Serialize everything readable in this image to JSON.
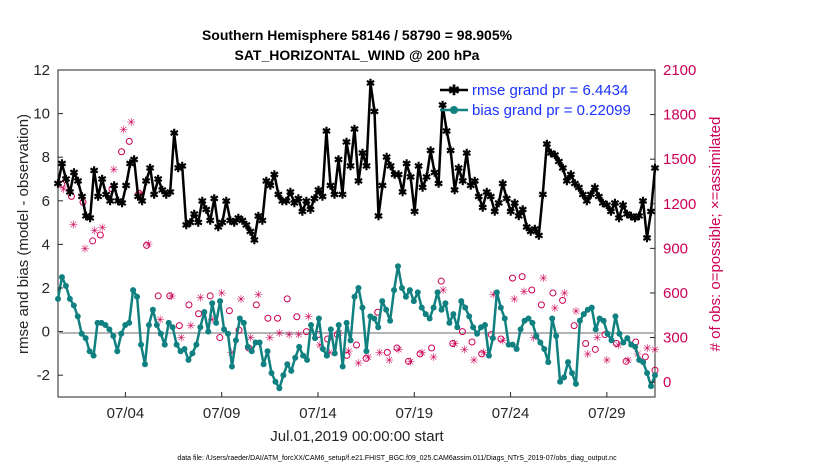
{
  "header": {
    "title_line1": "Southern Hemisphere 58146 / 58790 = 98.905%",
    "title_line2": "SAT_HORIZONTAL_WIND @ 200 hPa"
  },
  "footer_note": "data file: /Users/raeder/DAI/ATM_forcXX/CAM6_setup/f.e21.FHIST_BGC.f09_025.CAM6assim.011/Diags_NTrS_2019-07/obs_diag_output.nc",
  "colors": {
    "rmse": "#000000",
    "bias": "#108080",
    "obs": "#cc0055",
    "zero_line": "#b4b4b4"
  },
  "chart_data": {
    "type": "line",
    "xlabel": "Jul.01,2019 00:00:00 start",
    "ylabel_left": "rmse and bias (model - observation)",
    "ylabel_right": "# of obs: o=possible; ×=assimilated",
    "x_tick_labels": [
      "07/04",
      "07/09",
      "07/14",
      "07/19",
      "07/24",
      "07/29"
    ],
    "x_tick_days": [
      3.5,
      8.5,
      13.5,
      18.5,
      23.5,
      28.5
    ],
    "xlim_days": [
      0,
      31
    ],
    "ylim_left": [
      -3,
      12
    ],
    "yticks_left": [
      "-2",
      "0",
      "2",
      "4",
      "6",
      "8",
      "10",
      "12"
    ],
    "ylim_right": [
      -100,
      2100
    ],
    "yticks_right": [
      "0",
      "300",
      "600",
      "900",
      "1200",
      "1500",
      "1800",
      "2100"
    ],
    "legend_position": "top-right",
    "series": [
      {
        "name": "rmse grand pr = 6.4434",
        "axis": "left",
        "values": [
          6.8,
          7.7,
          7.0,
          6.4,
          7.3,
          6.9,
          6.2,
          5.3,
          5.2,
          7.4,
          6.2,
          7.0,
          6.3,
          6.0,
          6.7,
          6.0,
          5.9,
          6.7,
          7.7,
          7.9,
          6.2,
          6.0,
          6.9,
          7.5,
          6.3,
          7.0,
          6.5,
          6.3,
          6.4,
          9.1,
          7.5,
          7.6,
          4.9,
          5.0,
          5.4,
          5.0,
          6.0,
          5.6,
          5.1,
          6.1,
          4.8,
          5.0,
          6.0,
          5.1,
          5.0,
          5.2,
          5.1,
          4.9,
          4.6,
          4.2,
          5.3,
          5.1,
          6.9,
          6.7,
          7.2,
          6.3,
          6.0,
          6.0,
          6.4,
          5.9,
          6.1,
          5.5,
          6.0,
          5.6,
          6.1,
          6.5,
          6.2,
          9.2,
          6.7,
          6.3,
          7.9,
          6.3,
          8.7,
          7.6,
          9.3,
          6.9,
          8.2,
          7.6,
          11.4,
          10.1,
          5.3,
          6.7,
          8.0,
          7.6,
          7.2,
          7.2,
          6.4,
          7.7,
          7.1,
          5.5,
          7.6,
          6.6,
          7.1,
          8.3,
          7.3,
          6.8,
          10.4,
          9.2,
          8.3,
          6.5,
          7.5,
          6.9,
          8.2,
          6.7,
          6.9,
          6.2,
          5.7,
          6.4,
          6.2,
          5.5,
          5.9,
          6.8,
          6.1,
          5.5,
          5.9,
          5.3,
          5.6,
          4.8,
          4.6,
          4.7,
          4.4,
          6.3,
          8.6,
          8.2,
          8.1,
          7.8,
          7.5,
          6.9,
          7.2,
          6.8,
          6.6,
          6.3,
          6.0,
          6.3,
          6.6,
          6.2,
          5.9,
          5.8,
          5.5,
          5.9,
          5.2,
          5.8,
          5.4,
          5.3,
          5.2,
          5.3,
          6.0,
          4.3,
          5.5,
          7.5
        ]
      },
      {
        "name": "bias grand pr = 0.22099",
        "axis": "left",
        "values": [
          1.5,
          2.5,
          2.1,
          1.5,
          1.2,
          0.7,
          -0.1,
          -0.3,
          -0.9,
          -1.1,
          0.4,
          0.4,
          0.3,
          0.1,
          -0.2,
          -0.9,
          -0.1,
          0.3,
          0.4,
          1.9,
          1.6,
          -0.6,
          -1.5,
          0.3,
          1.0,
          0.3,
          -0.1,
          -0.6,
          0.4,
          0.2,
          -0.6,
          -0.9,
          -0.8,
          -1.3,
          -1.0,
          -0.6,
          0.2,
          0.9,
          0.0,
          1.3,
          0.4,
          1.4,
          0.1,
          -0.1,
          -1.6,
          -0.4,
          0.6,
          0.4,
          -0.7,
          -0.9,
          -0.5,
          -0.5,
          -1.5,
          -0.9,
          -1.9,
          -2.3,
          -2.6,
          -2.0,
          -1.5,
          -1.8,
          -1.2,
          -0.7,
          -1.1,
          -1.3,
          0.3,
          -0.3,
          0.6,
          -0.8,
          -1.1,
          0.1,
          -1.0,
          0.3,
          -1.6,
          0.4,
          -0.4,
          1.6,
          2.0,
          1.1,
          -0.9,
          0.7,
          0.6,
          0.2,
          1.4,
          1.0,
          0.5,
          1.9,
          3.0,
          2.0,
          1.6,
          1.9,
          1.4,
          1.8,
          1.1,
          0.8,
          0.6,
          1.1,
          1.8,
          1.0,
          1.3,
          0.4,
          0.8,
          0.2,
          1.4,
          1.1,
          0.7,
          0.2,
          -0.1,
          0.2,
          0.3,
          -1.1,
          -0.3,
          1.8,
          1.1,
          0.6,
          -0.6,
          -0.6,
          -0.8,
          0.1,
          0.5,
          0.6,
          0.4,
          -0.2,
          -0.5,
          -0.8,
          -1.4,
          0.6,
          -0.2,
          -2.3,
          -2.1,
          -1.4,
          -1.9,
          -2.4,
          0.5,
          0.8,
          1.0,
          1.1,
          0.1,
          0.6,
          0.5,
          -0.1,
          -0.4,
          0.7,
          -0.1,
          -0.5,
          -0.3,
          -0.6,
          -0.7,
          -1.3,
          -1.4,
          -1.9,
          -2.5,
          -2.0
        ]
      },
      {
        "name": "# of obs possible",
        "axis": "right",
        "marker": "o",
        "x_days": [
          0.2,
          0.7,
          1.3,
          1.8,
          2.2,
          2.8,
          3.3,
          3.7,
          4.2,
          4.6,
          5.2,
          5.8,
          6.3,
          6.8,
          7.3,
          7.9,
          8.4,
          8.9,
          9.4,
          9.9,
          10.3,
          10.9,
          11.4,
          11.9,
          12.4,
          12.9,
          13.5,
          14.0,
          14.5,
          15.0,
          15.5,
          16.0,
          16.6,
          17.1,
          17.6,
          18.2,
          18.8,
          19.4,
          19.9,
          20.5,
          21.0,
          21.5,
          22.0,
          22.5,
          23.0,
          23.6,
          24.1,
          24.6,
          25.1,
          25.7,
          26.2,
          26.8,
          27.4,
          27.9,
          28.4,
          29.0,
          29.5,
          30.0,
          30.5,
          31.0
        ],
        "values": [
          1330,
          1250,
          1210,
          950,
          990,
          1300,
          1550,
          1620,
          1270,
          920,
          580,
          580,
          380,
          520,
          460,
          580,
          300,
          480,
          350,
          230,
          520,
          430,
          430,
          560,
          440,
          340,
          320,
          290,
          320,
          180,
          250,
          160,
          470,
          200,
          230,
          140,
          190,
          230,
          680,
          260,
          340,
          270,
          190,
          320,
          290,
          700,
          710,
          620,
          520,
          600,
          550,
          380,
          260,
          220,
          320,
          260,
          140,
          270,
          170,
          80
        ]
      },
      {
        "name": "# of obs assimilated",
        "axis": "right",
        "marker": "x",
        "x_days": [
          0.3,
          0.8,
          1.4,
          1.9,
          2.3,
          2.9,
          3.4,
          3.8,
          4.3,
          4.7,
          5.3,
          5.9,
          6.4,
          6.9,
          7.4,
          8.0,
          8.5,
          9.0,
          9.5,
          10.0,
          10.4,
          11.0,
          11.5,
          12.0,
          12.5,
          13.0,
          13.6,
          14.1,
          14.6,
          15.1,
          15.6,
          16.1,
          16.7,
          17.2,
          17.7,
          18.3,
          18.9,
          19.5,
          20.0,
          20.6,
          21.1,
          21.6,
          22.1,
          22.6,
          23.1,
          23.7,
          24.2,
          24.7,
          25.2,
          25.8,
          26.3,
          26.9,
          27.5,
          28.0,
          28.5,
          29.1,
          29.6,
          30.1,
          30.6,
          31.0
        ],
        "values": [
          1300,
          1060,
          900,
          1020,
          1040,
          1430,
          1700,
          1750,
          1270,
          930,
          420,
          580,
          300,
          380,
          570,
          420,
          600,
          200,
          560,
          300,
          590,
          300,
          330,
          320,
          320,
          440,
          250,
          200,
          330,
          210,
          130,
          170,
          200,
          150,
          220,
          140,
          200,
          170,
          620,
          260,
          220,
          150,
          200,
          590,
          280,
          560,
          610,
          300,
          700,
          500,
          600,
          480,
          190,
          300,
          150,
          250,
          150,
          190,
          230,
          220
        ]
      }
    ]
  }
}
